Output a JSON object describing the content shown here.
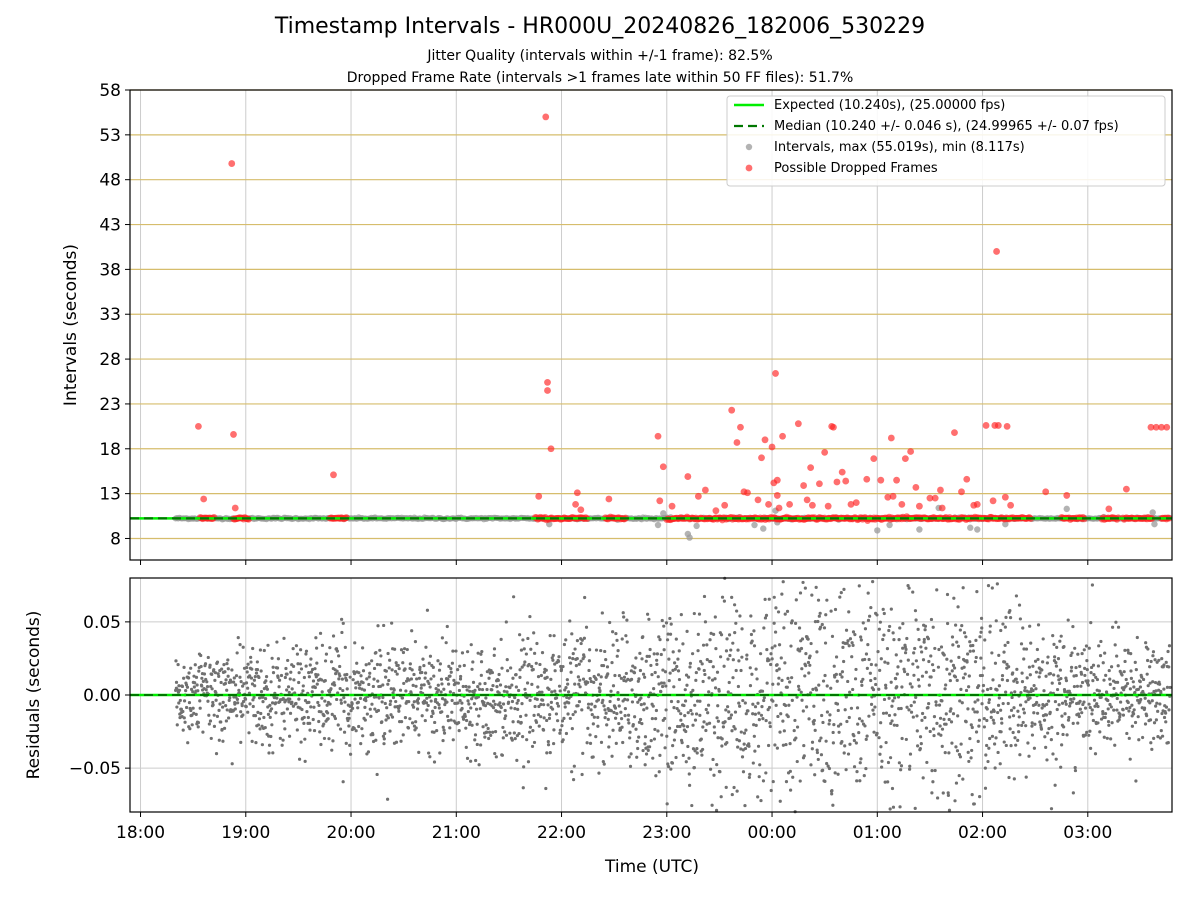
{
  "header": {
    "title": "Timestamp Intervals - HR000U_20240826_182006_530229",
    "subtitle_1": "Jitter Quality (intervals within +/-1 frame): 82.5%",
    "subtitle_2": "Dropped Frame Rate (intervals >1 frames late within 50 FF files): 51.7%"
  },
  "colors": {
    "expected": "#00ee00",
    "median": "#007700",
    "intervals": "#999999",
    "dropped": "#ff2222",
    "residuals": "#707070",
    "hgrid_top": "#d6bd6c",
    "grid": "#cccccc"
  },
  "chart_data": [
    {
      "type": "scatter",
      "ylabel": "Intervals (seconds)",
      "ylim": [
        5.6,
        58
      ],
      "yticks": [
        8,
        13,
        18,
        23,
        28,
        33,
        38,
        43,
        48,
        53,
        58
      ],
      "xlim_hours": [
        -0.1,
        9.8
      ],
      "grid": true,
      "legend_position": "top-right",
      "legend": [
        "Expected (10.240s), (25.00000 fps)",
        "Median (10.240 +/- 0.046 s), (24.99965 +/- 0.07 fps)",
        "Intervals, max (55.019s), min (8.117s)",
        "Possible Dropped Frames"
      ],
      "expected_interval": 10.24,
      "median_interval": 10.24,
      "series": [
        {
          "kind": "dropped",
          "points": [
            [
              "18:33",
              20.5
            ],
            [
              "18:36",
              12.4
            ],
            [
              "18:52",
              49.8
            ],
            [
              "18:53",
              19.6
            ],
            [
              "18:54",
              11.4
            ],
            [
              "19:50",
              15.1
            ],
            [
              "21:47",
              12.7
            ],
            [
              "21:51",
              55.0
            ],
            [
              "21:52",
              25.4
            ],
            [
              "21:52",
              24.5
            ],
            [
              "21:54",
              18.0
            ],
            [
              "22:09",
              13.1
            ],
            [
              "22:08",
              11.8
            ],
            [
              "22:11",
              11.2
            ],
            [
              "22:27",
              12.4
            ],
            [
              "22:55",
              19.4
            ],
            [
              "22:58",
              16.0
            ],
            [
              "22:56",
              12.2
            ],
            [
              "23:03",
              11.6
            ],
            [
              "23:12",
              14.9
            ],
            [
              "23:18",
              12.7
            ],
            [
              "23:22",
              13.4
            ],
            [
              "23:28",
              11.1
            ],
            [
              "23:33",
              11.7
            ],
            [
              "23:37",
              22.3
            ],
            [
              "23:40",
              18.7
            ],
            [
              "23:42",
              20.4
            ],
            [
              "23:44",
              13.2
            ],
            [
              "23:46",
              13.1
            ],
            [
              "23:52",
              12.3
            ],
            [
              "23:54",
              17.0
            ],
            [
              "23:56",
              19.0
            ],
            [
              "23:58",
              11.8
            ],
            [
              "00:00",
              18.2
            ],
            [
              "00:01",
              14.2
            ],
            [
              "00:02",
              26.4
            ],
            [
              "00:03",
              14.5
            ],
            [
              "00:03",
              12.8
            ],
            [
              "00:04",
              11.4
            ],
            [
              "00:06",
              19.4
            ],
            [
              "00:10",
              11.8
            ],
            [
              "00:15",
              20.8
            ],
            [
              "00:18",
              13.9
            ],
            [
              "00:20",
              12.3
            ],
            [
              "00:22",
              15.9
            ],
            [
              "00:23",
              11.7
            ],
            [
              "00:27",
              14.1
            ],
            [
              "00:30",
              17.6
            ],
            [
              "00:32",
              11.6
            ],
            [
              "00:34",
              20.5
            ],
            [
              "00:35",
              20.4
            ],
            [
              "00:37",
              14.3
            ],
            [
              "00:40",
              15.4
            ],
            [
              "00:42",
              14.4
            ],
            [
              "00:45",
              11.8
            ],
            [
              "00:48",
              12.0
            ],
            [
              "00:54",
              14.6
            ],
            [
              "00:58",
              16.9
            ],
            [
              "01:02",
              14.5
            ],
            [
              "01:06",
              12.6
            ],
            [
              "01:08",
              19.2
            ],
            [
              "01:09",
              12.7
            ],
            [
              "01:11",
              14.5
            ],
            [
              "01:14",
              11.8
            ],
            [
              "01:16",
              16.9
            ],
            [
              "01:19",
              17.7
            ],
            [
              "01:22",
              13.7
            ],
            [
              "01:24",
              11.6
            ],
            [
              "01:30",
              12.5
            ],
            [
              "01:33",
              12.5
            ],
            [
              "01:36",
              13.4
            ],
            [
              "01:37",
              11.4
            ],
            [
              "01:44",
              19.8
            ],
            [
              "01:48",
              13.2
            ],
            [
              "01:51",
              14.6
            ],
            [
              "01:55",
              11.7
            ],
            [
              "01:57",
              11.8
            ],
            [
              "02:02",
              20.6
            ],
            [
              "02:06",
              12.2
            ],
            [
              "02:07",
              20.6
            ],
            [
              "02:08",
              40.0
            ],
            [
              "02:09",
              20.6
            ],
            [
              "02:13",
              12.6
            ],
            [
              "02:14",
              20.5
            ],
            [
              "02:16",
              11.7
            ],
            [
              "02:36",
              13.2
            ],
            [
              "02:48",
              12.8
            ],
            [
              "03:12",
              11.3
            ],
            [
              "03:22",
              13.5
            ],
            [
              "03:36",
              20.4
            ],
            [
              "03:39",
              20.4
            ],
            [
              "03:42",
              20.4
            ],
            [
              "03:45",
              20.4
            ]
          ],
          "baseline_clusters": [
            [
              "18:34",
              "18:42"
            ],
            [
              "18:53",
              "19:02"
            ],
            [
              "19:48",
              "19:58"
            ],
            [
              "21:45",
              "22:15"
            ],
            [
              "22:25",
              "22:37"
            ],
            [
              "23:00",
              "02:28"
            ],
            [
              "02:45",
              "02:58"
            ],
            [
              "03:08",
              "03:18"
            ],
            [
              "03:20",
              "03:37"
            ],
            [
              "03:42",
              "03:47"
            ]
          ],
          "baseline_value": 10.24
        },
        {
          "kind": "intervals",
          "range": [
            "18:20",
            "03:47"
          ],
          "baseline_value": 10.24,
          "outliers": [
            [
              "21:53",
              9.6
            ],
            [
              "22:55",
              9.5
            ],
            [
              "22:58",
              10.8
            ],
            [
              "23:12",
              8.5
            ],
            [
              "23:13",
              8.1
            ],
            [
              "23:17",
              9.4
            ],
            [
              "23:50",
              9.5
            ],
            [
              "23:55",
              9.1
            ],
            [
              "00:02",
              11.1
            ],
            [
              "00:03",
              9.8
            ],
            [
              "01:00",
              8.9
            ],
            [
              "01:07",
              9.5
            ],
            [
              "01:24",
              9.0
            ],
            [
              "01:35",
              11.4
            ],
            [
              "01:53",
              9.2
            ],
            [
              "01:57",
              9.0
            ],
            [
              "02:13",
              9.6
            ],
            [
              "02:48",
              11.3
            ],
            [
              "03:37",
              10.9
            ],
            [
              "03:38",
              9.6
            ]
          ]
        }
      ]
    },
    {
      "type": "scatter",
      "xlabel": "Time (UTC)",
      "ylabel": "Residuals (seconds)",
      "ylim": [
        -0.08,
        0.08
      ],
      "yticks": [
        -0.05,
        0.0,
        0.05
      ],
      "ytick_labels": [
        "−0.05",
        "0.00",
        "0.05"
      ],
      "xticks": [
        "18:00",
        "19:00",
        "20:00",
        "21:00",
        "22:00",
        "23:00",
        "00:00",
        "01:00",
        "02:00",
        "03:00"
      ],
      "xlim_hours": [
        -0.1,
        9.8
      ],
      "grid": true,
      "zero_line": 0.0,
      "residual_range": [
        "18:20",
        "03:47"
      ],
      "residual_spread": [
        [
          "18:20",
          0.015
        ],
        [
          "20:00",
          0.02
        ],
        [
          "21:00",
          0.017
        ],
        [
          "22:00",
          0.022
        ],
        [
          "23:00",
          0.028
        ],
        [
          "23:40",
          0.04
        ],
        [
          "00:30",
          0.045
        ],
        [
          "01:30",
          0.042
        ],
        [
          "02:20",
          0.03
        ],
        [
          "03:00",
          0.02
        ],
        [
          "03:47",
          0.018
        ]
      ]
    }
  ]
}
